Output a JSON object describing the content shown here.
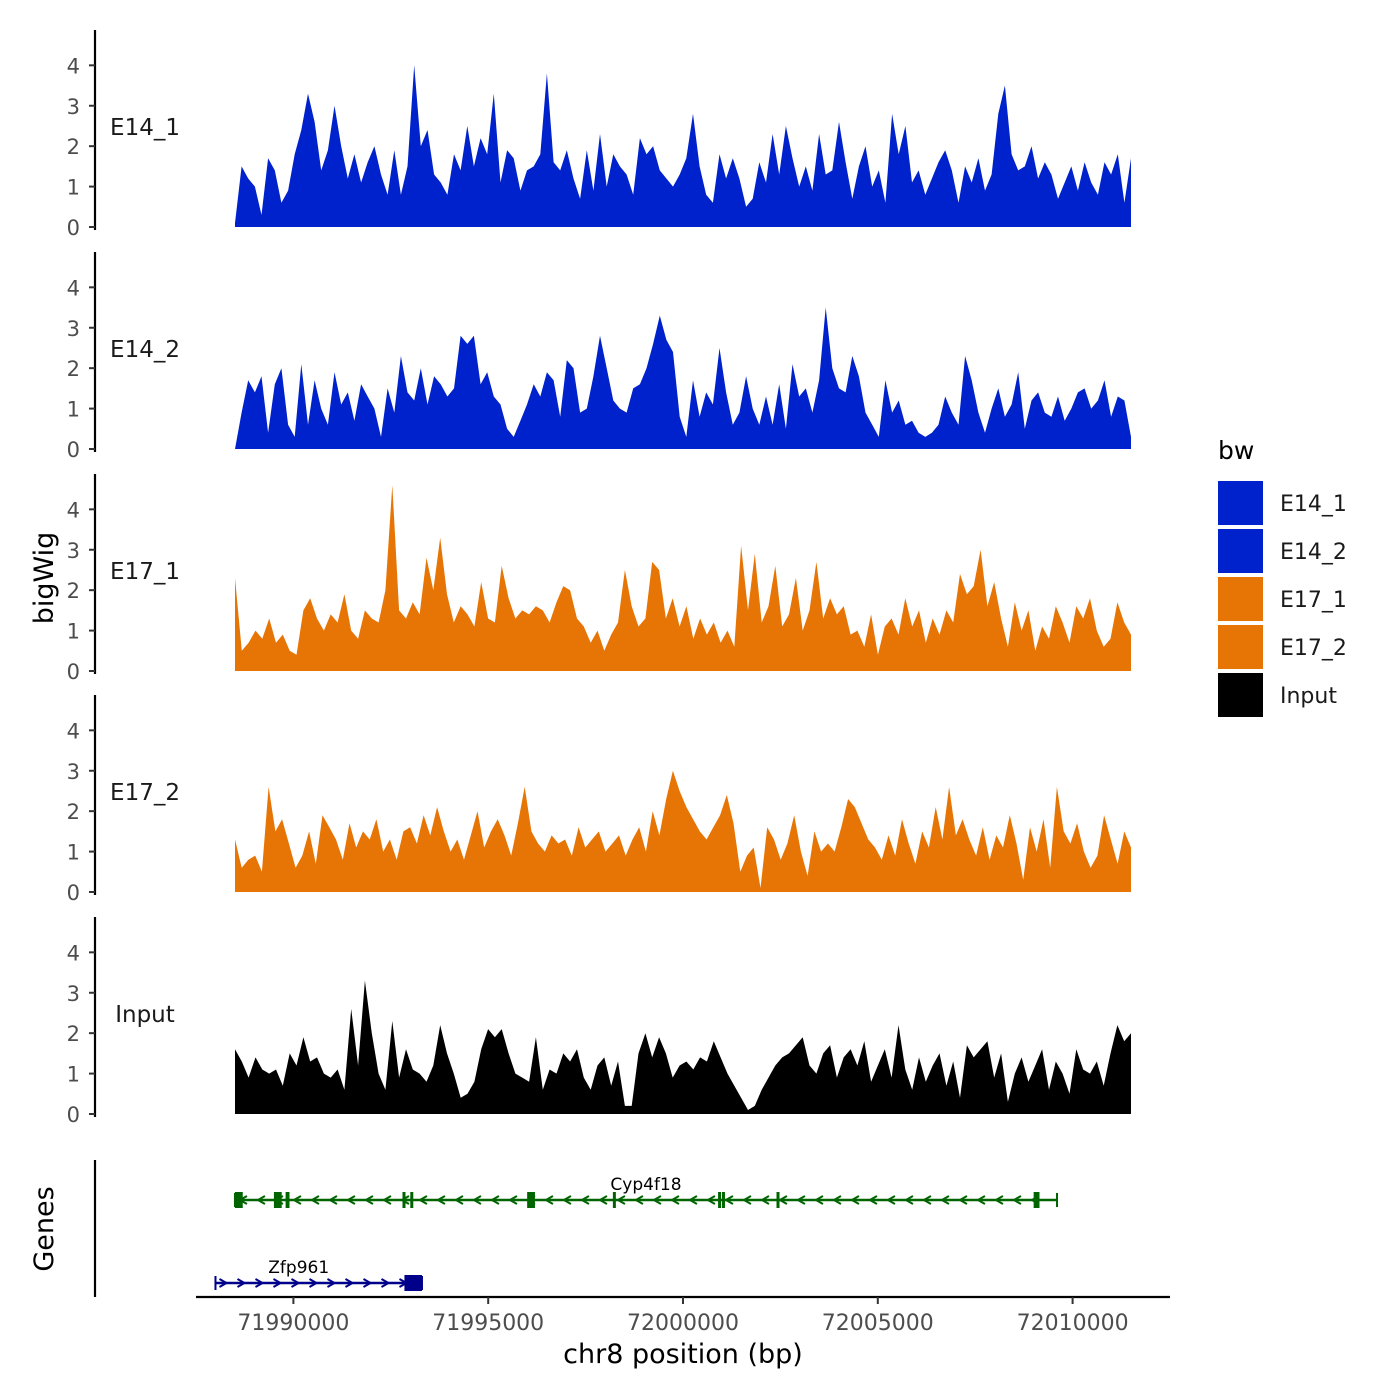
{
  "chart_data": {
    "type": "area",
    "title": "",
    "xlabel": "chr8 position (bp)",
    "ylabel": "bigWig",
    "genes_label": "Genes",
    "xlim": [
      71987500,
      72012500
    ],
    "x_ticks": [
      71990000,
      71995000,
      72000000,
      72005000,
      72010000
    ],
    "x_tick_labels": [
      "71990000",
      "71995000",
      "72000000",
      "72005000",
      "72010000"
    ],
    "ylim": [
      0,
      4.8
    ],
    "y_ticks": [
      0,
      1,
      2,
      3,
      4
    ],
    "y_tick_labels": [
      "0",
      "1",
      "2",
      "3",
      "4"
    ],
    "data_range": [
      71988500,
      72011500
    ],
    "legend": {
      "title": "bw",
      "entries": [
        {
          "name": "E14_1",
          "color": "#0022cc"
        },
        {
          "name": "E14_2",
          "color": "#0022cc"
        },
        {
          "name": "E17_1",
          "color": "#e67505"
        },
        {
          "name": "E17_2",
          "color": "#e67505"
        },
        {
          "name": "Input",
          "color": "#000000"
        }
      ]
    },
    "series": [
      {
        "name": "E14_1",
        "color": "#0022cc",
        "values": [
          0.1,
          1.5,
          1.2,
          1.0,
          0.3,
          1.7,
          1.4,
          0.6,
          0.9,
          1.8,
          2.4,
          3.3,
          2.6,
          1.4,
          1.9,
          3.0,
          2.0,
          1.2,
          1.8,
          1.1,
          1.6,
          2.0,
          1.3,
          0.8,
          1.9,
          0.8,
          1.5,
          4.0,
          2.0,
          2.4,
          1.3,
          1.1,
          0.8,
          1.8,
          1.4,
          2.5,
          1.5,
          2.2,
          1.8,
          3.3,
          1.1,
          1.9,
          1.7,
          0.9,
          1.4,
          1.5,
          1.8,
          3.8,
          1.6,
          1.4,
          1.9,
          1.2,
          0.7,
          1.9,
          0.9,
          2.3,
          1.0,
          1.8,
          1.5,
          1.3,
          0.8,
          2.2,
          1.8,
          2.0,
          1.4,
          1.2,
          1.0,
          1.3,
          1.7,
          2.8,
          1.5,
          0.8,
          0.6,
          1.8,
          1.2,
          1.7,
          1.2,
          0.5,
          0.7,
          1.6,
          1.1,
          2.3,
          1.3,
          2.5,
          1.7,
          1.0,
          1.5,
          0.9,
          2.3,
          1.3,
          1.4,
          2.6,
          1.6,
          0.7,
          1.5,
          2.0,
          1.0,
          1.4,
          0.6,
          2.8,
          1.8,
          2.5,
          1.1,
          1.4,
          0.8,
          1.2,
          1.6,
          1.9,
          1.4,
          0.6,
          1.5,
          1.1,
          1.7,
          0.9,
          1.3,
          2.8,
          3.5,
          1.8,
          1.4,
          1.5,
          2.0,
          1.2,
          1.6,
          1.3,
          0.7,
          1.1,
          1.5,
          0.9,
          1.6,
          1.1,
          0.8,
          1.6,
          1.3,
          1.8,
          0.6,
          1.7
        ]
      },
      {
        "name": "E14_2",
        "color": "#0022cc",
        "values": [
          0.0,
          0.9,
          1.7,
          1.4,
          1.8,
          0.4,
          1.6,
          2.0,
          0.6,
          0.3,
          2.1,
          0.6,
          1.7,
          1.0,
          0.6,
          1.9,
          1.1,
          1.4,
          0.7,
          1.6,
          1.3,
          1.0,
          0.3,
          1.5,
          0.9,
          2.3,
          1.4,
          1.2,
          2.0,
          1.1,
          1.8,
          1.6,
          1.3,
          1.5,
          2.8,
          2.6,
          2.8,
          1.6,
          1.9,
          1.3,
          1.1,
          0.5,
          0.3,
          0.7,
          1.1,
          1.6,
          1.3,
          1.9,
          1.7,
          0.8,
          2.2,
          2.0,
          0.9,
          1.0,
          1.8,
          2.8,
          2.0,
          1.2,
          1.0,
          0.9,
          1.5,
          1.6,
          2.0,
          2.6,
          3.3,
          2.7,
          2.4,
          0.8,
          0.3,
          1.7,
          0.8,
          1.4,
          1.1,
          2.5,
          1.4,
          0.6,
          0.9,
          1.8,
          1.0,
          0.6,
          1.3,
          0.6,
          1.6,
          0.5,
          2.1,
          1.3,
          1.5,
          0.9,
          1.7,
          3.5,
          2.0,
          1.5,
          1.4,
          2.3,
          1.8,
          0.9,
          0.6,
          0.3,
          1.7,
          0.9,
          1.2,
          0.6,
          0.7,
          0.4,
          0.3,
          0.4,
          0.6,
          1.3,
          0.9,
          0.6,
          2.3,
          1.7,
          0.9,
          0.4,
          1.0,
          1.5,
          0.8,
          1.1,
          1.9,
          0.5,
          1.2,
          1.4,
          0.9,
          0.8,
          1.3,
          0.7,
          1.0,
          1.4,
          1.5,
          1.0,
          1.2,
          1.7,
          0.8,
          1.3,
          1.2,
          0.3
        ]
      },
      {
        "name": "E17_1",
        "color": "#e67505",
        "values": [
          2.3,
          0.5,
          0.7,
          1.0,
          0.8,
          1.3,
          0.7,
          0.9,
          0.5,
          0.4,
          1.5,
          1.8,
          1.3,
          1.0,
          1.4,
          1.2,
          1.9,
          1.0,
          0.8,
          1.5,
          1.3,
          1.2,
          2.0,
          4.6,
          1.5,
          1.3,
          1.7,
          1.4,
          2.8,
          2.0,
          3.3,
          1.9,
          1.2,
          1.6,
          1.4,
          1.1,
          2.2,
          1.3,
          1.2,
          2.6,
          1.8,
          1.3,
          1.5,
          1.4,
          1.6,
          1.5,
          1.2,
          1.7,
          2.1,
          2.0,
          1.3,
          1.1,
          0.7,
          1.0,
          0.5,
          0.9,
          1.2,
          2.5,
          1.6,
          1.1,
          1.3,
          2.7,
          2.5,
          1.3,
          1.8,
          1.1,
          1.6,
          0.8,
          1.3,
          0.9,
          1.2,
          0.7,
          1.0,
          0.6,
          3.1,
          1.5,
          2.9,
          1.2,
          1.6,
          2.6,
          1.1,
          1.4,
          2.3,
          1.0,
          1.5,
          2.7,
          1.3,
          1.8,
          1.4,
          1.6,
          0.9,
          1.0,
          0.6,
          1.4,
          0.4,
          1.1,
          1.3,
          0.9,
          1.8,
          1.1,
          1.5,
          0.7,
          1.3,
          0.9,
          1.5,
          1.2,
          2.4,
          1.9,
          2.1,
          3.0,
          1.6,
          2.2,
          1.3,
          0.6,
          1.7,
          1.0,
          1.5,
          0.5,
          1.1,
          0.8,
          1.6,
          1.2,
          0.7,
          1.6,
          1.3,
          1.8,
          1.0,
          0.6,
          0.8,
          1.7,
          1.2,
          0.9
        ]
      },
      {
        "name": "E17_2",
        "color": "#e67505",
        "values": [
          1.3,
          0.6,
          0.8,
          0.9,
          0.5,
          2.6,
          1.5,
          1.8,
          1.2,
          0.6,
          0.9,
          1.5,
          0.7,
          1.9,
          1.6,
          1.3,
          0.8,
          1.7,
          1.1,
          1.5,
          1.3,
          1.8,
          1.0,
          1.3,
          0.8,
          1.5,
          1.6,
          1.2,
          1.9,
          1.4,
          2.1,
          1.5,
          1.0,
          1.3,
          0.8,
          1.4,
          2.0,
          1.1,
          1.5,
          1.8,
          1.4,
          0.9,
          1.7,
          2.6,
          1.5,
          1.2,
          1.0,
          1.4,
          1.2,
          1.3,
          0.9,
          1.6,
          1.1,
          1.3,
          1.5,
          1.0,
          1.2,
          1.4,
          0.9,
          1.3,
          1.6,
          1.0,
          2.0,
          1.4,
          2.3,
          3.0,
          2.5,
          2.1,
          1.8,
          1.5,
          1.3,
          1.6,
          1.9,
          2.4,
          1.7,
          0.5,
          0.9,
          1.1,
          0.1,
          1.6,
          1.3,
          0.8,
          1.2,
          1.9,
          1.0,
          0.4,
          1.5,
          1.0,
          1.2,
          1.0,
          1.6,
          2.3,
          2.1,
          1.7,
          1.3,
          1.1,
          0.8,
          1.4,
          0.9,
          1.8,
          1.2,
          0.7,
          1.5,
          1.1,
          2.1,
          1.3,
          2.6,
          1.4,
          1.8,
          1.3,
          0.9,
          1.6,
          0.8,
          1.4,
          1.1,
          1.9,
          1.2,
          0.3,
          1.6,
          1.0,
          1.8,
          0.6,
          2.6,
          1.5,
          1.2,
          1.7,
          1.0,
          0.6,
          0.9,
          1.9,
          1.3,
          0.7,
          1.5,
          1.1
        ]
      },
      {
        "name": "Input",
        "color": "#000000",
        "values": [
          1.6,
          1.3,
          0.9,
          1.4,
          1.1,
          1.0,
          1.1,
          0.7,
          1.5,
          1.2,
          1.9,
          1.3,
          1.4,
          1.0,
          0.9,
          1.1,
          0.6,
          2.6,
          1.2,
          3.3,
          2.0,
          1.0,
          0.6,
          2.3,
          0.9,
          1.6,
          1.1,
          1.0,
          0.8,
          1.2,
          2.2,
          1.5,
          1.0,
          0.4,
          0.5,
          0.8,
          1.6,
          2.1,
          1.9,
          2.1,
          1.5,
          1.0,
          0.9,
          0.8,
          1.9,
          0.6,
          1.1,
          1.0,
          1.5,
          1.3,
          1.6,
          0.9,
          0.6,
          1.2,
          1.4,
          0.7,
          1.3,
          0.2,
          0.2,
          1.5,
          2.0,
          1.4,
          1.9,
          1.5,
          0.9,
          1.2,
          1.3,
          1.1,
          1.4,
          1.3,
          1.8,
          1.4,
          1.0,
          0.7,
          0.4,
          0.1,
          0.2,
          0.6,
          0.9,
          1.2,
          1.4,
          1.5,
          1.7,
          1.9,
          1.2,
          1.0,
          1.5,
          1.7,
          0.9,
          1.4,
          1.6,
          1.2,
          1.8,
          0.8,
          1.2,
          1.6,
          0.9,
          2.2,
          1.1,
          0.6,
          1.4,
          0.8,
          1.2,
          1.5,
          0.7,
          1.3,
          0.4,
          1.7,
          1.4,
          1.6,
          1.8,
          0.9,
          1.5,
          0.3,
          1.0,
          1.4,
          0.8,
          1.2,
          1.6,
          0.6,
          1.3,
          1.0,
          0.5,
          1.6,
          1.1,
          1.0,
          1.3,
          0.7,
          1.5,
          2.2,
          1.8,
          2.0
        ]
      }
    ],
    "genes": [
      {
        "name": "Cyp4f18",
        "strand": "-",
        "color": "#006400",
        "start": 71988500,
        "end": 72009600,
        "exons": [
          [
            71988500,
            71988700
          ],
          [
            71989500,
            71989700
          ],
          [
            71989800,
            71989900
          ],
          [
            71992800,
            71992850
          ],
          [
            71993000,
            71993050
          ],
          [
            71996000,
            71996200
          ],
          [
            71998200,
            71998250
          ],
          [
            72000900,
            72000950
          ],
          [
            72001000,
            72001050
          ],
          [
            72002400,
            72002450
          ],
          [
            72009000,
            72009150
          ]
        ]
      },
      {
        "name": "Zfp961",
        "strand": "+",
        "color": "#00008b",
        "start": 71988000,
        "end": 71993300,
        "exons": [
          [
            71992850,
            71993300
          ]
        ]
      }
    ]
  }
}
